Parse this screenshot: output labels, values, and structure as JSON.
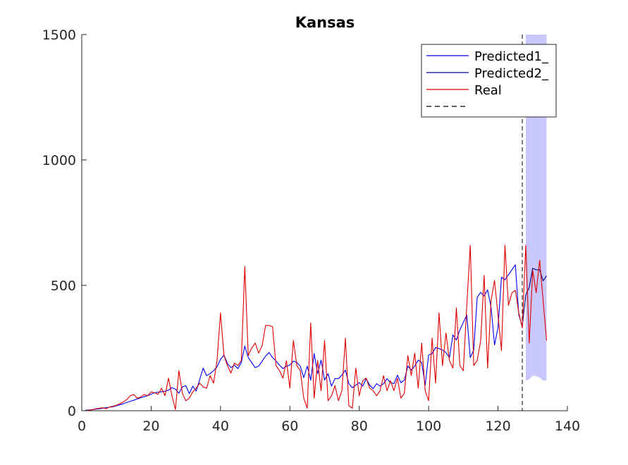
{
  "chart_data": {
    "type": "line",
    "title": "Kansas",
    "xlabel": "",
    "ylabel": "",
    "xlim": [
      0,
      140
    ],
    "ylim": [
      0,
      1500
    ],
    "xticks": [
      0,
      20,
      40,
      60,
      80,
      100,
      120,
      140
    ],
    "yticks": [
      0,
      500,
      1000,
      1500
    ],
    "grid": false,
    "legend_position": "top-right",
    "vline_x": 127,
    "forecast_band": {
      "color": "#c8c8ff",
      "x": [
        128,
        129,
        130,
        131,
        132,
        133,
        134
      ],
      "lower": [
        120,
        125,
        140,
        138,
        132,
        120,
        122
      ],
      "upper": [
        1500,
        1500,
        1500,
        1500,
        1500,
        1500,
        1500
      ]
    },
    "series": [
      {
        "name": "Predicted1_",
        "color": "#0000ff",
        "x": [
          1,
          2,
          3,
          4,
          5,
          6,
          7,
          8,
          9,
          10,
          11,
          12,
          13,
          14,
          15,
          16,
          17,
          18,
          19,
          20,
          21,
          22,
          23,
          24,
          25,
          26,
          27,
          28,
          29,
          30,
          31,
          32,
          33,
          34,
          35,
          36,
          37,
          38,
          39,
          40,
          41,
          42,
          43,
          44,
          45,
          46,
          47,
          48,
          49,
          50,
          51,
          52,
          53,
          54,
          55,
          56,
          57,
          58,
          59,
          60,
          61,
          62,
          63,
          64,
          65,
          66,
          67,
          68,
          69,
          70,
          71,
          72,
          73,
          74,
          75,
          76,
          77,
          78,
          79,
          80,
          81,
          82,
          83,
          84,
          85,
          86,
          87,
          88,
          89,
          90,
          91,
          92,
          93,
          94,
          95,
          96,
          97,
          98,
          99,
          100,
          101,
          102,
          103,
          104,
          105,
          106,
          107,
          108,
          109,
          110,
          111,
          112,
          113,
          114,
          115,
          116,
          117,
          118,
          119,
          120,
          121,
          122,
          123,
          124,
          125,
          126,
          127
        ],
        "values": [
          2,
          3,
          4,
          6,
          8,
          10,
          12,
          14,
          16,
          20,
          24,
          28,
          33,
          38,
          42,
          47,
          52,
          56,
          60,
          66,
          72,
          74,
          76,
          78,
          82,
          92,
          86,
          70,
          95,
          100,
          68,
          98,
          78,
          125,
          170,
          140,
          148,
          160,
          175,
          205,
          222,
          188,
          172,
          182,
          168,
          192,
          258,
          212,
          192,
          172,
          178,
          198,
          218,
          232,
          212,
          198,
          182,
          168,
          178,
          182,
          198,
          192,
          178,
          132,
          178,
          122,
          228,
          148,
          202,
          122,
          148,
          98,
          128,
          128,
          142,
          162,
          108,
          92,
          102,
          112,
          98,
          128,
          102,
          88,
          108,
          98,
          108,
          128,
          112,
          108,
          142,
          112,
          122,
          178,
          162,
          178,
          202,
          192,
          102,
          222,
          228,
          252,
          248,
          242,
          232,
          212,
          302,
          282,
          322,
          352,
          382,
          212,
          242,
          452,
          472,
          458,
          482,
          412,
          262,
          332,
          532,
          522,
          542,
          562,
          582,
          382,
          338
        ]
      },
      {
        "name": "Predicted2_",
        "color": "#00008b",
        "x": [
          127,
          128,
          129,
          130,
          131,
          132,
          133,
          134
        ],
        "values": [
          338,
          462,
          492,
          568,
          562,
          562,
          518,
          538
        ]
      },
      {
        "name": "Real",
        "color": "#e00000",
        "x": [
          1,
          2,
          3,
          4,
          5,
          6,
          7,
          8,
          9,
          10,
          11,
          12,
          13,
          14,
          15,
          16,
          17,
          18,
          19,
          20,
          21,
          22,
          23,
          24,
          25,
          26,
          27,
          28,
          29,
          30,
          31,
          32,
          33,
          34,
          35,
          36,
          37,
          38,
          39,
          40,
          41,
          42,
          43,
          44,
          45,
          46,
          47,
          48,
          49,
          50,
          51,
          52,
          53,
          54,
          55,
          56,
          57,
          58,
          59,
          60,
          61,
          62,
          63,
          64,
          65,
          66,
          67,
          68,
          69,
          70,
          71,
          72,
          73,
          74,
          75,
          76,
          77,
          78,
          79,
          80,
          81,
          82,
          83,
          84,
          85,
          86,
          87,
          88,
          89,
          90,
          91,
          92,
          93,
          94,
          95,
          96,
          97,
          98,
          99,
          100,
          101,
          102,
          103,
          104,
          105,
          106,
          107,
          108,
          109,
          110,
          111,
          112,
          113,
          114,
          115,
          116,
          117,
          118,
          119,
          120,
          121,
          122,
          123,
          124,
          125,
          126,
          127,
          128,
          129,
          130,
          131,
          132,
          133,
          134
        ],
        "values": [
          0,
          2,
          4,
          8,
          10,
          12,
          8,
          15,
          18,
          22,
          28,
          35,
          45,
          60,
          65,
          50,
          55,
          65,
          60,
          75,
          72,
          65,
          90,
          60,
          130,
          60,
          5,
          160,
          70,
          40,
          50,
          75,
          90,
          110,
          95,
          90,
          140,
          110,
          200,
          390,
          220,
          180,
          150,
          190,
          180,
          200,
          575,
          220,
          250,
          270,
          230,
          260,
          340,
          340,
          335,
          180,
          160,
          130,
          200,
          90,
          280,
          180,
          160,
          50,
          10,
          350,
          50,
          200,
          80,
          280,
          40,
          60,
          100,
          40,
          80,
          290,
          20,
          10,
          170,
          60,
          120,
          130,
          90,
          80,
          60,
          80,
          140,
          80,
          120,
          80,
          130,
          50,
          70,
          220,
          140,
          230,
          90,
          270,
          80,
          40,
          290,
          110,
          390,
          180,
          310,
          200,
          170,
          410,
          180,
          160,
          420,
          660,
          180,
          200,
          280,
          540,
          170,
          440,
          520,
          380,
          240,
          660,
          420,
          470,
          480,
          390,
          330,
          660,
          270,
          560,
          470,
          600,
          440,
          280
        ]
      },
      {
        "name": "",
        "color": "#000000",
        "dashed": true
      }
    ]
  }
}
